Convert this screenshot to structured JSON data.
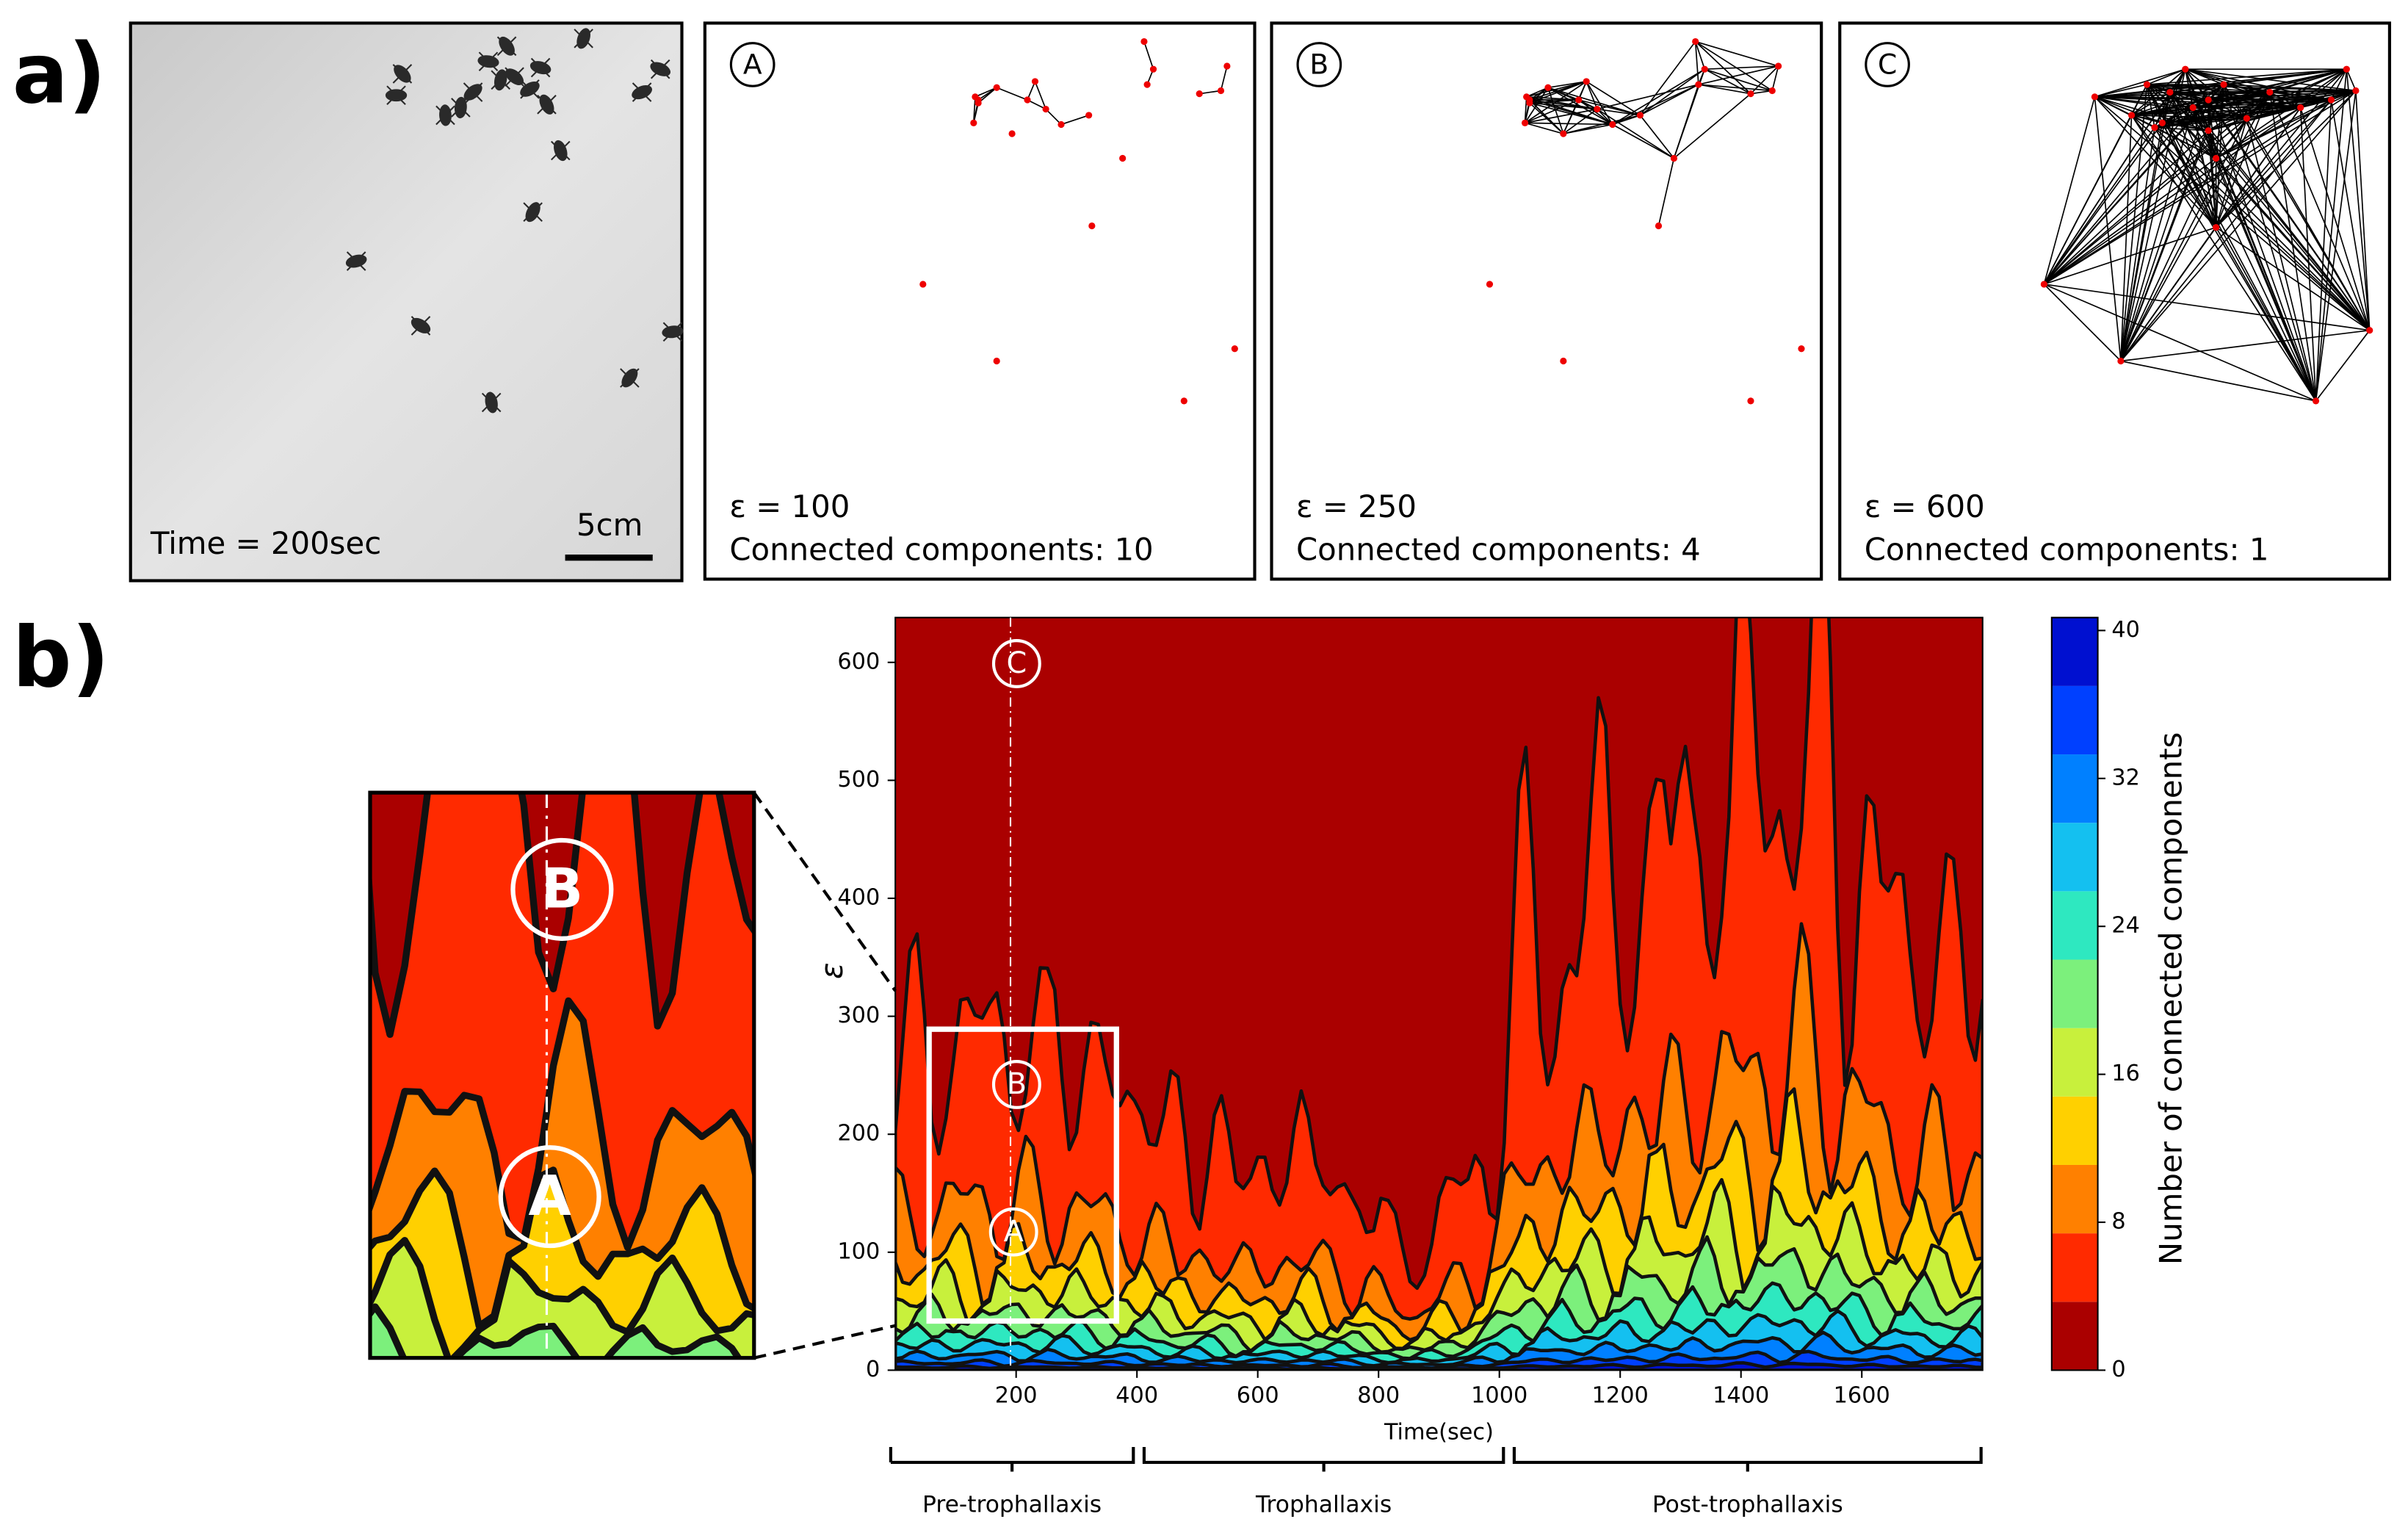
{
  "panel_a": {
    "label": "a)",
    "photo": {
      "time": "Time = 200sec",
      "scale": "5cm"
    },
    "networks": [
      {
        "marker": "A",
        "epsilon": "ε = 100",
        "components": "Connected components: 10"
      },
      {
        "marker": "B",
        "epsilon": "ε = 250",
        "components": "Connected components: 4"
      },
      {
        "marker": "C",
        "epsilon": "ε = 600",
        "components": "Connected components: 1"
      }
    ]
  },
  "panel_b": {
    "label": "b)",
    "xlabel": "Time(sec)",
    "ylabel": "ε",
    "xlim": [
      0,
      1800
    ],
    "ylim": [
      0,
      638
    ],
    "xticks": [
      200,
      400,
      600,
      800,
      1000,
      1200,
      1400,
      1600
    ],
    "yticks": [
      0,
      100,
      200,
      300,
      400,
      500,
      600
    ],
    "colorbar": {
      "label": "Number of connected components",
      "lim": [
        0,
        40.7
      ],
      "ticks": [
        0,
        8,
        16,
        24,
        32,
        40
      ]
    },
    "plot_markers": [
      "C",
      "B",
      "A"
    ],
    "inset_markers": [
      "B",
      "A"
    ],
    "phases": [
      "Pre-trophallaxis",
      "Trophallaxis",
      "Post-trophallaxis"
    ]
  }
}
